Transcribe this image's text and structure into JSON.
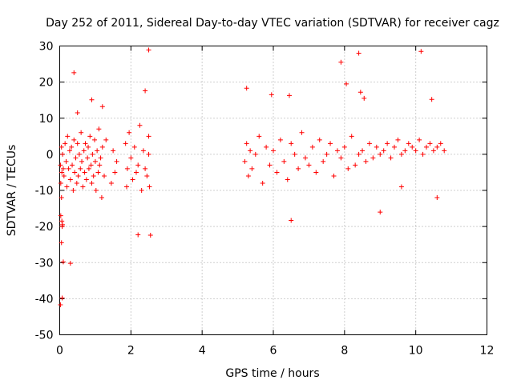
{
  "chart_data": {
    "type": "scatter",
    "title": "Day 252 of 2011, Sidereal Day-to-day VTEC variation (SDTVAR) for receiver cagz",
    "xlabel": "GPS time / hours",
    "ylabel": "SDTVAR / TECUs",
    "xlim": [
      0,
      12
    ],
    "ylim": [
      -50,
      30
    ],
    "xticks": [
      "0",
      "2",
      "4",
      "6",
      "8",
      "10",
      "12"
    ],
    "yticks": [
      "30",
      "20",
      "10",
      "0",
      "-10",
      "-20",
      "-30",
      "-40",
      "-50"
    ],
    "grid": true,
    "marker": "+",
    "color": "#ff0000",
    "series": [
      {
        "name": "cagz",
        "x": [
          0.02,
          0.03,
          0.05,
          0.05,
          0.06,
          0.07,
          0.08,
          0.1,
          0.12,
          0.15,
          0.18,
          0.2,
          0.22,
          0.25,
          0.28,
          0.3,
          0.33,
          0.35,
          0.38,
          0.4,
          0.42,
          0.45,
          0.48,
          0.5,
          0.52,
          0.55,
          0.58,
          0.6,
          0.62,
          0.65,
          0.68,
          0.7,
          0.72,
          0.75,
          0.78,
          0.8,
          0.82,
          0.85,
          0.88,
          0.9,
          0.92,
          0.95,
          0.98,
          1.0,
          1.02,
          1.05,
          1.08,
          1.1,
          1.12,
          1.15,
          1.18,
          1.2,
          1.25,
          1.3,
          1.45,
          1.5,
          1.55,
          1.6,
          1.85,
          1.88,
          1.9,
          1.95,
          2.0,
          2.05,
          2.1,
          2.15,
          2.2,
          2.25,
          2.3,
          2.35,
          2.4,
          2.45,
          2.5,
          2.5,
          2.52,
          5.2,
          5.25,
          5.3,
          5.35,
          5.4,
          5.5,
          5.6,
          5.7,
          5.8,
          5.9,
          6.0,
          6.1,
          6.2,
          6.3,
          6.4,
          6.5,
          6.6,
          6.7,
          6.8,
          6.9,
          7.0,
          7.1,
          7.2,
          7.3,
          7.4,
          7.5,
          7.6,
          7.7,
          7.8,
          7.9,
          8.0,
          8.1,
          8.2,
          8.3,
          8.4,
          8.5,
          8.6,
          8.7,
          8.8,
          8.9,
          9.0,
          9.1,
          9.2,
          9.3,
          9.4,
          9.5,
          9.6,
          9.7,
          9.8,
          9.9,
          10.0,
          10.1,
          10.2,
          10.3,
          10.4,
          10.5,
          10.6,
          10.7,
          10.8,
          0.1,
          0.3,
          0.5,
          0.4,
          0.9,
          1.2,
          0.05,
          0.07,
          0.02,
          0.06,
          0.03,
          0.08,
          5.25,
          5.95,
          6.45,
          7.9,
          8.4,
          8.45,
          10.15,
          10.45,
          2.4,
          2.5,
          2.2,
          2.55,
          8.05,
          8.55,
          6.5,
          9.0,
          9.6,
          10.6
        ],
        "y": [
          -3,
          -8,
          2,
          -12,
          -5,
          -20,
          0,
          -4,
          -6,
          3,
          -2,
          -9,
          5,
          -4,
          1,
          -7,
          2,
          -3,
          -10,
          4,
          -5,
          -1,
          -8,
          3,
          -6,
          0,
          -4,
          6,
          -2,
          -9,
          1,
          -5,
          3,
          -7,
          -1,
          2,
          -4,
          5,
          -3,
          -8,
          0,
          -6,
          4,
          -2,
          -10,
          1,
          -5,
          7,
          -3,
          -1,
          -12,
          2,
          -6,
          4,
          -8,
          1,
          -5,
          -2,
          3,
          -9,
          -4,
          6,
          -1,
          -7,
          2,
          -5,
          -3,
          8,
          -10,
          1,
          -4,
          -6,
          0,
          5,
          -9,
          -2,
          3,
          -6,
          1,
          -4,
          0,
          5,
          -8,
          2,
          -3,
          1,
          -5,
          4,
          -2,
          -7,
          3,
          0,
          -4,
          6,
          -1,
          -3,
          2,
          -5,
          4,
          -2,
          0,
          3,
          -6,
          1,
          -1,
          2,
          -4,
          5,
          -3,
          0,
          1,
          -2,
          3,
          -1,
          2,
          0,
          1,
          3,
          -1,
          2,
          4,
          0,
          1,
          3,
          2,
          1,
          4,
          0,
          2,
          3,
          1,
          2,
          3,
          1,
          -29.8,
          -30.2,
          11.5,
          22.6,
          15.1,
          13.2,
          -24.5,
          -39.8,
          -41.7,
          -18.5,
          -17,
          -19.5,
          18.3,
          16.5,
          16.3,
          25.5,
          28,
          17.2,
          28.5,
          15.2,
          17.6,
          28.9,
          -22.3,
          -22.4,
          19.5,
          15.5,
          -18.3,
          -16,
          -9,
          -12
        ]
      }
    ]
  }
}
